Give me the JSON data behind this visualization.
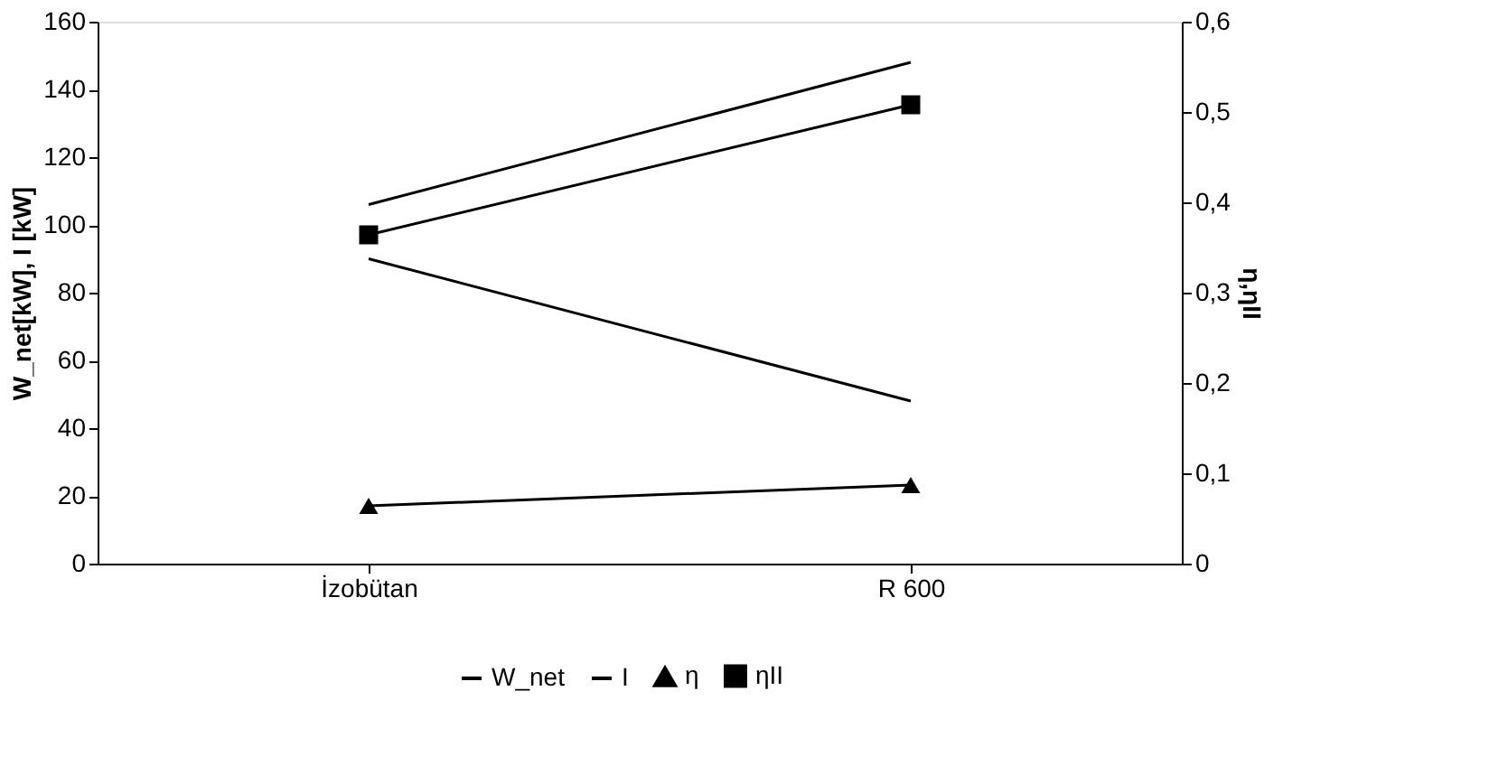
{
  "chart_data": {
    "type": "line",
    "ylabel": "W_net[kW], I [kW]",
    "y2label": "η,ηII",
    "categories": [
      "İzobütan",
      "R 600"
    ],
    "series": [
      {
        "name": "W_net",
        "color": "#000000",
        "values": [
          106,
          148
        ],
        "marker": "none"
      },
      {
        "name": "I",
        "color": "#000000",
        "values": [
          90,
          48
        ],
        "marker": "none"
      },
      {
        "name": "η",
        "color": "#000000",
        "values": [
          0.064,
          0.087
        ],
        "axis": "y2",
        "marker": "triangle"
      },
      {
        "name": "ηII",
        "color": "#000000",
        "values": [
          0.364,
          0.508
        ],
        "axis": "y2",
        "marker": "square"
      }
    ],
    "ylim": [
      0,
      160
    ],
    "yticks": [
      0,
      20,
      40,
      60,
      80,
      100,
      120,
      140,
      160
    ],
    "y2lim": [
      0,
      0.6
    ],
    "y2ticks": [
      {
        "value": 0,
        "label": "0"
      },
      {
        "value": 0.1,
        "label": "0,1"
      },
      {
        "value": 0.2,
        "label": "0,2"
      },
      {
        "value": 0.3,
        "label": "0,3"
      },
      {
        "value": 0.4,
        "label": "0,4"
      },
      {
        "value": 0.5,
        "label": "0,5"
      },
      {
        "value": 0.6,
        "label": "0,6"
      }
    ],
    "grid": false,
    "legend": "bottom",
    "line_style": "solid"
  }
}
